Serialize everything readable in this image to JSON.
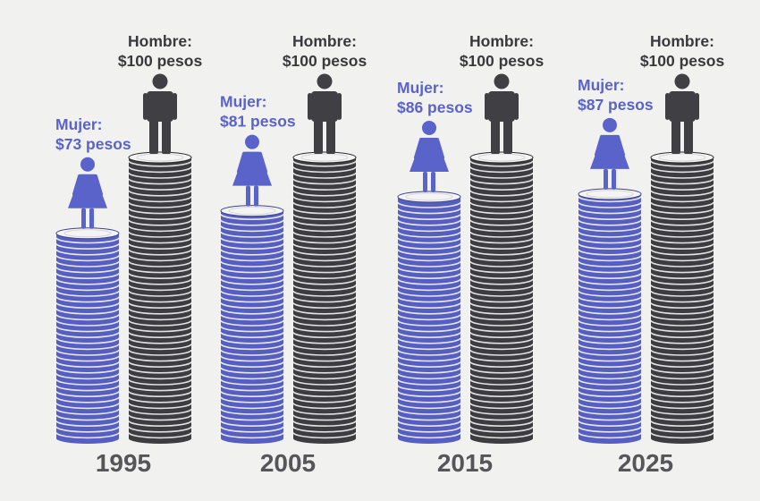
{
  "chart_data": {
    "type": "bar",
    "title": "",
    "xlabel": "",
    "ylabel": "",
    "categories": [
      "1995",
      "2005",
      "2015",
      "2025"
    ],
    "series": [
      {
        "name": "Mujer",
        "values": [
          73,
          81,
          86,
          87
        ],
        "labels": [
          "Mujer:\n$73 pesos",
          "Mujer:\n$81 pesos",
          "Mujer:\n$86 pesos",
          "Mujer:\n$87 pesos"
        ],
        "color": "#5a63c9"
      },
      {
        "name": "Hombre",
        "values": [
          100,
          100,
          100,
          100
        ],
        "labels": [
          "Hombre:\n$100 pesos",
          "Hombre:\n$100 pesos",
          "Hombre:\n$100 pesos",
          "Hombre:\n$100 pesos"
        ],
        "color": "#3f3f44"
      }
    ],
    "ylim": [
      0,
      100
    ],
    "grid": false,
    "legend": "none",
    "icons": [
      "woman-icon",
      "man-icon"
    ]
  },
  "colors": {
    "background": "#f1f1ef",
    "woman_coin": "#5a63c9",
    "man_coin": "#3f3f44",
    "woman_text": "#5a63c9",
    "man_text": "#3a3a3e",
    "year_text": "#55555a"
  }
}
